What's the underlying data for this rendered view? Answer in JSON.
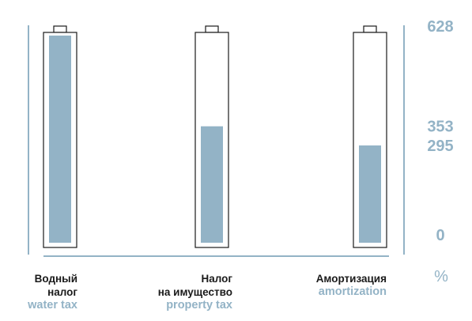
{
  "chart_data": {
    "type": "bar",
    "categories": [
      {
        "ru": [
          "Водный",
          "налог"
        ],
        "en": "water tax"
      },
      {
        "ru": [
          "Налог",
          "на имущество"
        ],
        "en": "property tax"
      },
      {
        "ru": [
          "Амортизация"
        ],
        "en": "amortization"
      }
    ],
    "values": [
      628,
      353,
      295
    ],
    "y_ticks": [
      628,
      353,
      295,
      0
    ],
    "unit": "%",
    "ylim": [
      0,
      628
    ],
    "title": "",
    "xlabel": "",
    "ylabel": "",
    "colors": {
      "bar_fill": "#93b3c6",
      "outline": "#1a1a1a",
      "axis": "#93b3c6"
    }
  }
}
